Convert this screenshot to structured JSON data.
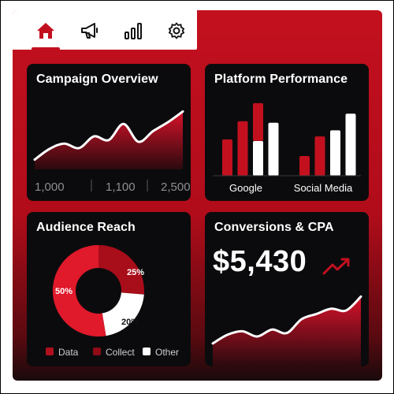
{
  "nav": {
    "tabs": [
      {
        "icon": "home-icon",
        "active": true
      },
      {
        "icon": "megaphone-icon",
        "active": false
      },
      {
        "icon": "bar-chart-icon",
        "active": false
      },
      {
        "icon": "gear-icon",
        "active": false
      }
    ]
  },
  "colors": {
    "accent": "#c3101f",
    "card": "#0b0b0d",
    "white": "#ffffff"
  },
  "cards": {
    "campaign": {
      "title": "Campaign Overview",
      "stats": [
        "1,000",
        "1,100",
        "2,500"
      ]
    },
    "platform": {
      "title": "Platform Performance"
    },
    "audience": {
      "title": "Audience Reach"
    },
    "conversions": {
      "title": "Conversions & CPA",
      "value": "$5,430"
    }
  },
  "chart_data": [
    {
      "type": "area",
      "title": "Campaign Overview",
      "x": [
        0,
        1,
        2,
        3,
        4,
        5,
        6,
        7,
        8,
        9,
        10
      ],
      "series": [
        {
          "values": [
            18,
            30,
            36,
            31,
            44,
            40,
            58,
            38,
            50,
            60,
            72
          ]
        }
      ],
      "ylim": [
        0,
        90
      ],
      "grid": false
    },
    {
      "type": "bar",
      "title": "Platform Performance",
      "categories": [
        "Google",
        "Social Media"
      ],
      "series": [
        {
          "color": "#c3101f",
          "values": [
            48,
            26
          ]
        },
        {
          "color": "#c3101f",
          "values": [
            72,
            52
          ]
        },
        {
          "color": "#ffffff",
          "values": [
            46,
            60
          ]
        },
        {
          "color": "#ffffff",
          "values": [
            70,
            82
          ]
        }
      ],
      "stacked_red_white_on": "Google third bar",
      "ylim": [
        0,
        100
      ]
    },
    {
      "type": "pie",
      "title": "Audience Reach",
      "slices": [
        {
          "label": "Data",
          "value": 50,
          "text": "50%",
          "color": "#e0192b"
        },
        {
          "label": "Collect",
          "value": 25,
          "text": "25%",
          "color": "#a80d1a"
        },
        {
          "label": "Other",
          "value": 20,
          "text": "20%",
          "color": "#ffffff"
        }
      ],
      "legend": [
        "Data",
        "Collect",
        "Other"
      ],
      "donut": true
    },
    {
      "type": "area",
      "title": "Conversions & CPA",
      "x": [
        0,
        1,
        2,
        3,
        4,
        5,
        6,
        7,
        8,
        9,
        10
      ],
      "series": [
        {
          "values": [
            12,
            22,
            26,
            20,
            28,
            24,
            40,
            46,
            52,
            50,
            66
          ]
        }
      ],
      "ylim": [
        0,
        80
      ],
      "trend": "up"
    }
  ]
}
